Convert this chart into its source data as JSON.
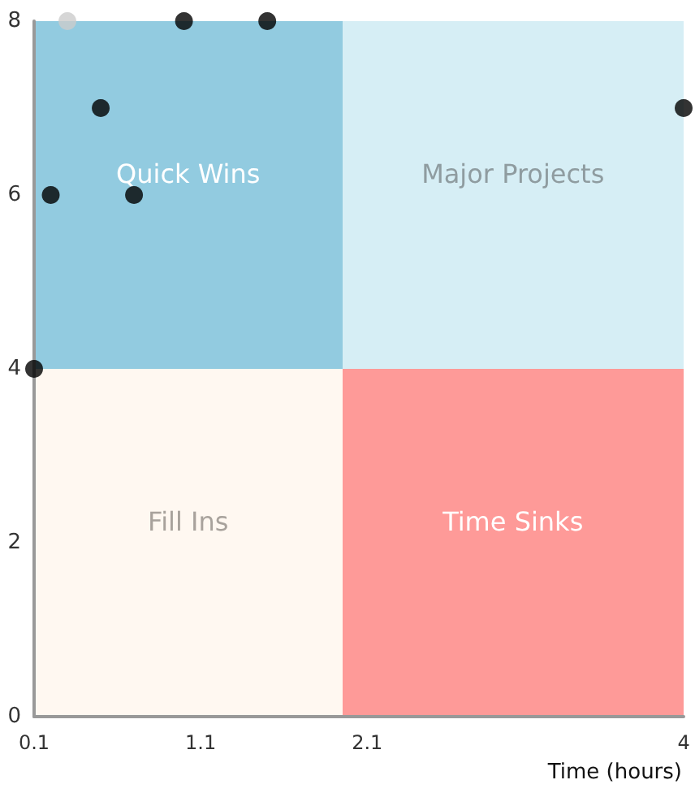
{
  "chart_data": {
    "type": "scatter",
    "xlabel": "Time (hours)",
    "x": [
      0.3,
      1.0,
      1.5,
      0.5,
      0.2,
      0.7,
      0.1,
      4
    ],
    "values": [
      8,
      8,
      8,
      7,
      6,
      6,
      4,
      7
    ],
    "colors": [
      "#cccccc",
      "#000000",
      "#000000",
      "#000000",
      "#000000",
      "#000000",
      "#000000",
      "#000000"
    ],
    "xlim": [
      0.1,
      4
    ],
    "xticks": [
      0.1,
      1.1,
      2.1,
      4
    ],
    "ylim": [
      0,
      8
    ],
    "yticks": [
      0,
      2,
      4,
      6,
      8
    ],
    "annotations": [
      "Quick Wins",
      "Major Projects",
      "Fill Ins",
      "Time Sinks"
    ],
    "grid": false,
    "marker": "circle"
  }
}
